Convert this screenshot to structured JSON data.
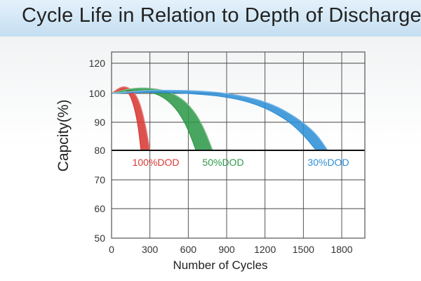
{
  "chart_data": {
    "type": "line",
    "title": "Cycle  Life in Relation to Depth of Discharge",
    "xlabel": "Number of Cycles",
    "ylabel": "Capcity(%)",
    "xlim": [
      0,
      1900
    ],
    "ylim": [
      50,
      120
    ],
    "xticks": [
      "0",
      "300",
      "600",
      "900",
      "1200",
      "1500",
      "1800"
    ],
    "yticks": [
      "50",
      "60",
      "70",
      "80",
      "90",
      "100",
      "120"
    ],
    "grid": true,
    "reference_line": {
      "y": 80
    },
    "series": [
      {
        "name": "100%DOD",
        "color": "#d83a35",
        "upper": [
          [
            0,
            100
          ],
          [
            60,
            102
          ],
          [
            110,
            102.5
          ],
          [
            170,
            101
          ],
          [
            220,
            97
          ],
          [
            260,
            90
          ],
          [
            285,
            84
          ],
          [
            300,
            80
          ]
        ],
        "lower": [
          [
            0,
            100
          ],
          [
            60,
            101
          ],
          [
            100,
            101.5
          ],
          [
            140,
            100
          ],
          [
            180,
            95
          ],
          [
            210,
            88
          ],
          [
            230,
            80
          ]
        ]
      },
      {
        "name": "50%DOD",
        "color": "#2f9a4a",
        "upper": [
          [
            0,
            100
          ],
          [
            150,
            101.8
          ],
          [
            280,
            102
          ],
          [
            430,
            101
          ],
          [
            560,
            98
          ],
          [
            660,
            93
          ],
          [
            730,
            87
          ],
          [
            790,
            80
          ]
        ],
        "lower": [
          [
            0,
            100
          ],
          [
            120,
            101
          ],
          [
            250,
            101
          ],
          [
            380,
            99.5
          ],
          [
            480,
            96
          ],
          [
            560,
            91
          ],
          [
            620,
            85
          ],
          [
            660,
            80
          ]
        ]
      },
      {
        "name": "30%DOD",
        "color": "#2f8fd6",
        "upper": [
          [
            0,
            100
          ],
          [
            300,
            101.2
          ],
          [
            700,
            101
          ],
          [
            1000,
            99.5
          ],
          [
            1250,
            96.5
          ],
          [
            1450,
            91.5
          ],
          [
            1600,
            86
          ],
          [
            1690,
            80
          ]
        ],
        "lower": [
          [
            0,
            100
          ],
          [
            280,
            100.5
          ],
          [
            650,
            100
          ],
          [
            950,
            98.5
          ],
          [
            1180,
            95.5
          ],
          [
            1380,
            90.5
          ],
          [
            1510,
            85
          ],
          [
            1600,
            80
          ]
        ]
      }
    ]
  }
}
